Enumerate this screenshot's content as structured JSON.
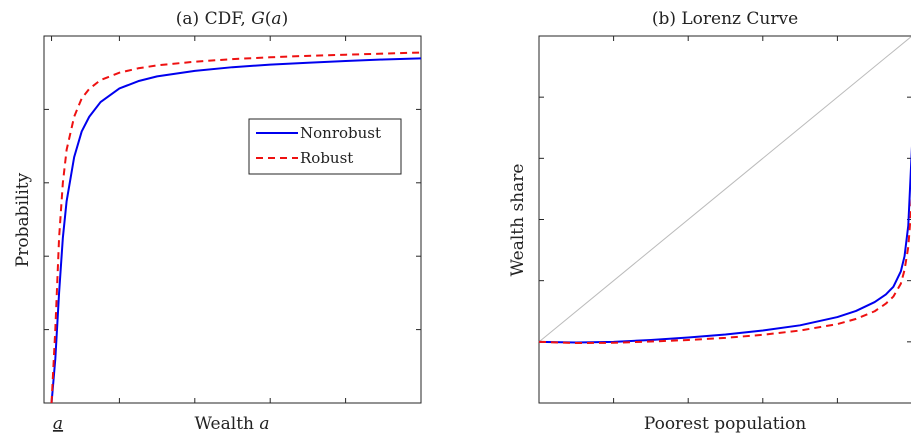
{
  "chart_data": [
    {
      "type": "line",
      "title": "(a) CDF, G(a)",
      "xlabel": "Wealth a",
      "ylabel": "Probability",
      "x_tick_label": "a",
      "xlim": [
        0,
        1
      ],
      "ylim": [
        0,
        1
      ],
      "x_ticks": [
        0.02,
        0.2,
        0.4,
        0.6,
        0.8,
        1.0
      ],
      "y_ticks": [
        0.2,
        0.4,
        0.6,
        0.8,
        1.0
      ],
      "legend": {
        "position": "right"
      },
      "series": [
        {
          "name": "Nonrobust",
          "color": "#0000ee",
          "dash": "solid",
          "x": [
            0.02,
            0.03,
            0.04,
            0.05,
            0.06,
            0.08,
            0.1,
            0.12,
            0.15,
            0.2,
            0.25,
            0.3,
            0.4,
            0.5,
            0.6,
            0.7,
            0.8,
            0.9,
            1.0
          ],
          "y": [
            0.0,
            0.12,
            0.3,
            0.45,
            0.55,
            0.67,
            0.74,
            0.78,
            0.82,
            0.857,
            0.877,
            0.89,
            0.905,
            0.915,
            0.922,
            0.927,
            0.932,
            0.936,
            0.939
          ]
        },
        {
          "name": "Robust",
          "color": "#ee1111",
          "dash": "dashed",
          "x": [
            0.02,
            0.03,
            0.04,
            0.05,
            0.06,
            0.08,
            0.1,
            0.12,
            0.15,
            0.2,
            0.25,
            0.3,
            0.4,
            0.5,
            0.6,
            0.7,
            0.8,
            0.9,
            1.0
          ],
          "y": [
            0.0,
            0.2,
            0.45,
            0.6,
            0.69,
            0.78,
            0.83,
            0.856,
            0.88,
            0.9,
            0.912,
            0.92,
            0.93,
            0.937,
            0.942,
            0.946,
            0.949,
            0.952,
            0.955
          ]
        }
      ]
    },
    {
      "type": "line",
      "title": "(b) Lorenz Curve",
      "xlabel": "Poorest population",
      "ylabel": "Wealth share",
      "xlim": [
        0,
        1
      ],
      "ylim": [
        -0.2,
        1.0
      ],
      "x_ticks": [
        0.2,
        0.4,
        0.6,
        0.8,
        1.0
      ],
      "y_ticks": [
        0.0,
        0.2,
        0.4,
        0.6,
        0.8,
        1.0
      ],
      "series": [
        {
          "name": "45-degree line",
          "color": "#bbbbbb",
          "dash": "solid",
          "x": [
            0,
            1
          ],
          "y": [
            0,
            1
          ]
        },
        {
          "name": "Nonrobust",
          "color": "#0000ee",
          "dash": "solid",
          "x": [
            0.0,
            0.1,
            0.2,
            0.3,
            0.4,
            0.5,
            0.6,
            0.7,
            0.8,
            0.85,
            0.9,
            0.93,
            0.95,
            0.97,
            0.98,
            0.99,
            1.0
          ],
          "y": [
            0.0,
            -0.002,
            0.0,
            0.006,
            0.014,
            0.024,
            0.037,
            0.054,
            0.081,
            0.101,
            0.13,
            0.155,
            0.18,
            0.23,
            0.28,
            0.38,
            0.64
          ]
        },
        {
          "name": "Robust",
          "color": "#ee1111",
          "dash": "dashed",
          "x": [
            0.0,
            0.1,
            0.2,
            0.3,
            0.4,
            0.5,
            0.6,
            0.7,
            0.8,
            0.85,
            0.9,
            0.93,
            0.95,
            0.97,
            0.98,
            0.99,
            1.0
          ],
          "y": [
            0.0,
            -0.004,
            -0.003,
            0.001,
            0.006,
            0.013,
            0.023,
            0.037,
            0.058,
            0.075,
            0.1,
            0.125,
            0.148,
            0.19,
            0.235,
            0.31,
            0.47
          ]
        }
      ]
    }
  ]
}
